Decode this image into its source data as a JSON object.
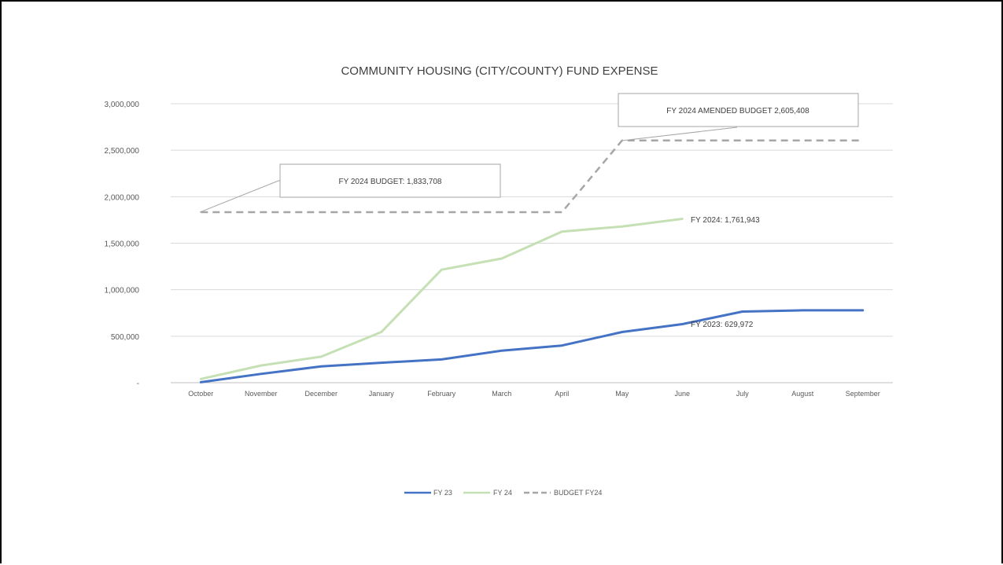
{
  "chart_data": {
    "type": "line",
    "title": "COMMUNITY HOUSING (CITY/COUNTY) FUND EXPENSE",
    "xlabel": "",
    "ylabel": "",
    "categories": [
      "October",
      "November",
      "December",
      "January",
      "February",
      "March",
      "April",
      "May",
      "June",
      "July",
      "August",
      "September"
    ],
    "ylim": [
      0,
      3000000
    ],
    "yticks": [
      0,
      500000,
      1000000,
      1500000,
      2000000,
      2500000,
      3000000
    ],
    "ytick_labels": [
      "-",
      "500,000",
      "1,000,000",
      "1,500,000",
      "2,000,000",
      "2,500,000",
      "3,000,000"
    ],
    "grid": true,
    "legend_position": "bottom",
    "series": [
      {
        "name": "FY 23",
        "color": "#4472c4",
        "dash": false,
        "values": [
          5000,
          95000,
          175000,
          215000,
          250000,
          345000,
          400000,
          545000,
          629972,
          765000,
          778000,
          778000
        ]
      },
      {
        "name": "FY 24",
        "color": "#c5e0b4",
        "dash": false,
        "values": [
          40000,
          185000,
          280000,
          545000,
          1215000,
          1335000,
          1625000,
          1680000,
          1761943,
          null,
          null,
          null
        ]
      },
      {
        "name": "BUDGET FY24",
        "color": "#a6a6a6",
        "dash": true,
        "values": [
          1833708,
          1833708,
          1833708,
          1833708,
          1833708,
          1833708,
          1833708,
          2605408,
          2605408,
          2605408,
          2605408,
          2605408
        ]
      }
    ],
    "annotations": {
      "budget_callout": "FY 2024 BUDGET: 1,833,708",
      "amended_callout": "FY 2024 AMENDED BUDGET 2,605,408",
      "fy24_label": "FY 2024: 1,761,943",
      "fy23_label": "FY 2023:  629,972"
    }
  }
}
